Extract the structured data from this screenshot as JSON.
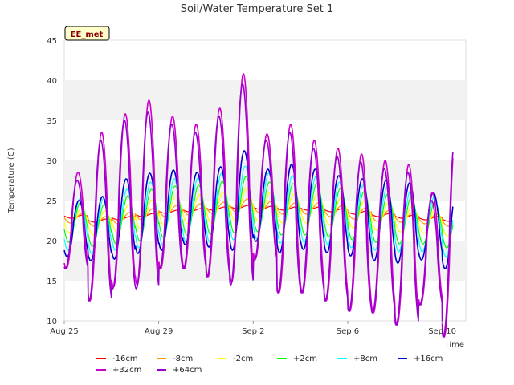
{
  "chart_data": {
    "type": "line",
    "title": "Soil/Water Temperature Set 1",
    "xlabel": "Time",
    "ylabel": "Temperature (C)",
    "ylim": [
      10,
      45
    ],
    "yticks": [
      10,
      15,
      20,
      25,
      30,
      35,
      40,
      45
    ],
    "xlim": [
      "2024-08-25",
      "2024-09-11"
    ],
    "xticks": [
      {
        "label": "Aug 25",
        "day": 0
      },
      {
        "label": "Aug 29",
        "day": 4
      },
      {
        "label": "Sep 2",
        "day": 8
      },
      {
        "label": "Sep 6",
        "day": 12
      },
      {
        "label": "Sep 10",
        "day": 16
      }
    ],
    "grid": "alternating horizontal bands",
    "legend_position": "bottom",
    "annotation": "EE_met",
    "series": [
      {
        "name": "-16cm",
        "color": "#ff0000",
        "mean": [
          23.0,
          22.5,
          22.8,
          23.2,
          23.6,
          23.8,
          24.0,
          24.2,
          24.1,
          24.0,
          24.0,
          23.8,
          23.5,
          23.2,
          23.0,
          22.8,
          22.6,
          22.3
        ],
        "amp": [
          0.2,
          0.2,
          0.2,
          0.2,
          0.2,
          0.2,
          0.2,
          0.2,
          0.2,
          0.2,
          0.2,
          0.2,
          0.2,
          0.2,
          0.2,
          0.2,
          0.2,
          0.2
        ]
      },
      {
        "name": "-8cm",
        "color": "#ff9900",
        "mean": [
          22.8,
          22.4,
          22.8,
          23.3,
          23.7,
          23.9,
          24.1,
          24.4,
          24.2,
          24.0,
          24.0,
          23.7,
          23.4,
          23.1,
          22.9,
          22.7,
          22.4,
          22.3
        ],
        "amp": [
          0.6,
          0.6,
          0.7,
          0.7,
          0.7,
          0.7,
          0.7,
          0.8,
          0.7,
          0.7,
          0.7,
          0.7,
          0.7,
          0.7,
          0.6,
          0.6,
          0.6,
          0.6
        ]
      },
      {
        "name": "-2cm",
        "color": "#ffff00",
        "mean": [
          22.5,
          22.2,
          22.8,
          23.3,
          23.7,
          23.9,
          24.1,
          24.5,
          24.2,
          24.0,
          24.0,
          23.7,
          23.3,
          23.0,
          22.7,
          22.4,
          22.1,
          22.0
        ],
        "amp": [
          1.5,
          1.5,
          1.7,
          1.8,
          1.8,
          1.8,
          1.9,
          2.0,
          1.8,
          1.8,
          1.8,
          1.7,
          1.7,
          1.7,
          1.6,
          1.5,
          1.5,
          1.4
        ]
      },
      {
        "name": "+2cm",
        "color": "#00ff00",
        "mean": [
          22.3,
          21.9,
          22.6,
          23.2,
          23.6,
          23.8,
          24.1,
          24.5,
          24.2,
          23.9,
          23.9,
          23.5,
          23.1,
          22.8,
          22.5,
          22.2,
          21.8,
          21.7
        ],
        "amp": [
          2.5,
          2.6,
          3.0,
          3.2,
          3.2,
          3.1,
          3.3,
          3.5,
          3.1,
          3.2,
          3.2,
          3.0,
          3.0,
          3.0,
          2.9,
          2.6,
          2.7,
          2.6
        ]
      },
      {
        "name": "+8cm",
        "color": "#00ffff",
        "mean": [
          22.0,
          21.8,
          22.6,
          23.2,
          23.6,
          23.8,
          24.1,
          24.7,
          24.3,
          23.9,
          23.9,
          23.4,
          23.0,
          22.7,
          22.4,
          22.0,
          21.6,
          21.6
        ],
        "amp": [
          3.2,
          3.4,
          3.8,
          4.1,
          4.1,
          4.0,
          4.3,
          4.6,
          4.1,
          4.2,
          4.1,
          3.9,
          3.9,
          3.9,
          3.8,
          3.4,
          3.6,
          3.5
        ]
      },
      {
        "name": "+16cm",
        "color": "#0000cc",
        "mean": [
          21.5,
          21.5,
          22.7,
          23.4,
          23.8,
          24.0,
          24.2,
          25.0,
          24.4,
          24.0,
          23.9,
          23.3,
          22.9,
          22.5,
          22.2,
          21.8,
          21.5,
          22.0
        ],
        "amp": [
          3.5,
          4.0,
          5.0,
          5.0,
          5.0,
          4.5,
          5.0,
          6.2,
          4.5,
          5.5,
          5.0,
          4.8,
          4.8,
          5.0,
          5.0,
          4.2,
          5.0,
          6.0
        ]
      },
      {
        "name": "+32cm",
        "color": "#cc00cc",
        "mean": [
          22.5,
          23.0,
          25.0,
          26.0,
          26.0,
          25.5,
          26.0,
          27.8,
          25.5,
          24.0,
          23.0,
          22.0,
          21.0,
          20.5,
          19.5,
          19.0,
          21.0,
          27.0
        ],
        "amp": [
          6.0,
          10.5,
          10.8,
          11.5,
          9.5,
          9.0,
          10.5,
          13.0,
          7.8,
          10.5,
          9.5,
          9.5,
          9.8,
          9.5,
          10.0,
          7.0,
          13.0,
          14.5
        ]
      },
      {
        "name": "+64cm",
        "color": "#9900cc",
        "mean": [
          22.0,
          22.5,
          24.5,
          25.0,
          25.5,
          25.0,
          25.5,
          27.0,
          25.0,
          23.5,
          22.5,
          21.5,
          20.5,
          20.0,
          19.0,
          18.5,
          20.5,
          26.0
        ],
        "amp": [
          5.5,
          10.0,
          10.5,
          11.0,
          9.0,
          8.5,
          10.0,
          12.5,
          7.5,
          10.0,
          9.0,
          9.0,
          9.3,
          9.0,
          9.5,
          6.5,
          12.5,
          14.0
        ]
      }
    ]
  }
}
